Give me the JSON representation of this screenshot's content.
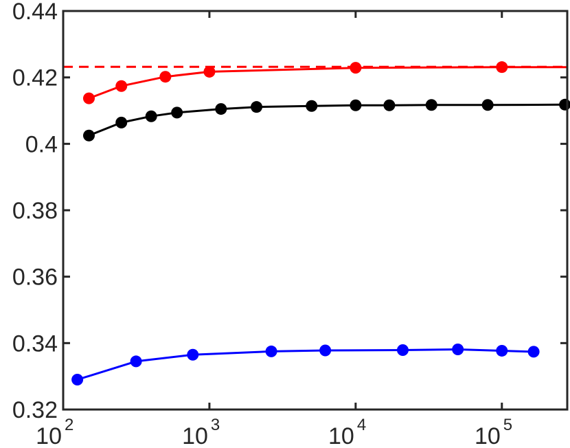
{
  "chart_data": {
    "type": "line",
    "title": "",
    "xlabel": "",
    "ylabel": "",
    "xscale": "log",
    "xlim": [
      100,
      280000
    ],
    "ylim": [
      0.32,
      0.44
    ],
    "grid": false,
    "xticks": [
      {
        "value": 100,
        "base": "10",
        "exp": "2"
      },
      {
        "value": 1000,
        "base": "10",
        "exp": "3"
      },
      {
        "value": 10000,
        "base": "10",
        "exp": "4"
      },
      {
        "value": 100000,
        "base": "10",
        "exp": "5"
      }
    ],
    "yticks": [
      {
        "value": 0.32,
        "label": "0.32"
      },
      {
        "value": 0.34,
        "label": "0.34"
      },
      {
        "value": 0.36,
        "label": "0.36"
      },
      {
        "value": 0.38,
        "label": "0.38"
      },
      {
        "value": 0.4,
        "label": "0.4"
      },
      {
        "value": 0.42,
        "label": "0.42"
      },
      {
        "value": 0.44,
        "label": "0.44"
      }
    ],
    "reference_lines": [
      {
        "y": 0.4232,
        "color": "#ff0000",
        "style": "dashed"
      }
    ],
    "series": [
      {
        "color": "#ff0000",
        "marker": "circle",
        "extend_line_to_x": 280000,
        "x": [
          150,
          250,
          500,
          1000,
          10000,
          100000
        ],
        "y": [
          0.4137,
          0.4174,
          0.4202,
          0.4217,
          0.4229,
          0.4231
        ]
      },
      {
        "color": "#000000",
        "marker": "circle",
        "x": [
          150,
          250,
          400,
          600,
          1200,
          2100,
          5000,
          10000,
          17000,
          33000,
          80000,
          270000
        ],
        "y": [
          0.4025,
          0.4064,
          0.4083,
          0.4094,
          0.4105,
          0.4111,
          0.4114,
          0.4116,
          0.4116,
          0.4117,
          0.4117,
          0.4118
        ]
      },
      {
        "color": "#0000ff",
        "marker": "circle",
        "x": [
          125,
          315,
          770,
          2650,
          6200,
          21000,
          50000,
          100000,
          165000
        ],
        "y": [
          0.329,
          0.3345,
          0.3365,
          0.3375,
          0.3378,
          0.3379,
          0.3381,
          0.3377,
          0.3374
        ]
      }
    ]
  }
}
